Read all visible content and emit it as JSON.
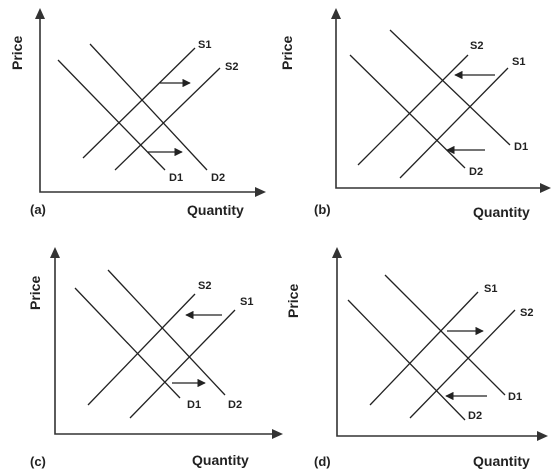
{
  "panels": [
    {
      "id": "a",
      "panel_label": "(a)",
      "y_axis_label": "Price",
      "x_axis_label": "Quantity",
      "curves": {
        "S1": "S1",
        "S2": "S2",
        "D1": "D1",
        "D2": "D2"
      },
      "arrows": [
        {
          "between": "S1-S2",
          "direction": "right"
        },
        {
          "between": "D1-D2",
          "direction": "right"
        }
      ]
    },
    {
      "id": "b",
      "panel_label": "(b)",
      "y_axis_label": "Price",
      "x_axis_label": "Quantity",
      "curves": {
        "S1": "S1",
        "S2": "S2",
        "D1": "D1",
        "D2": "D2"
      },
      "arrows": [
        {
          "between": "S1-S2",
          "direction": "left"
        },
        {
          "between": "D1-D2",
          "direction": "left"
        }
      ]
    },
    {
      "id": "c",
      "panel_label": "(c)",
      "y_axis_label": "Price",
      "x_axis_label": "Quantity",
      "curves": {
        "S1": "S1",
        "S2": "S2",
        "D1": "D1",
        "D2": "D2"
      },
      "arrows": [
        {
          "between": "S1-S2",
          "direction": "left"
        },
        {
          "between": "D1-D2",
          "direction": "right"
        }
      ]
    },
    {
      "id": "d",
      "panel_label": "(d)",
      "y_axis_label": "Price",
      "x_axis_label": "Quantity",
      "curves": {
        "S1": "S1",
        "S2": "S2",
        "D1": "D1",
        "D2": "D2"
      },
      "arrows": [
        {
          "between": "S1-S2",
          "direction": "right"
        },
        {
          "between": "D1-D2",
          "direction": "left"
        }
      ]
    }
  ]
}
